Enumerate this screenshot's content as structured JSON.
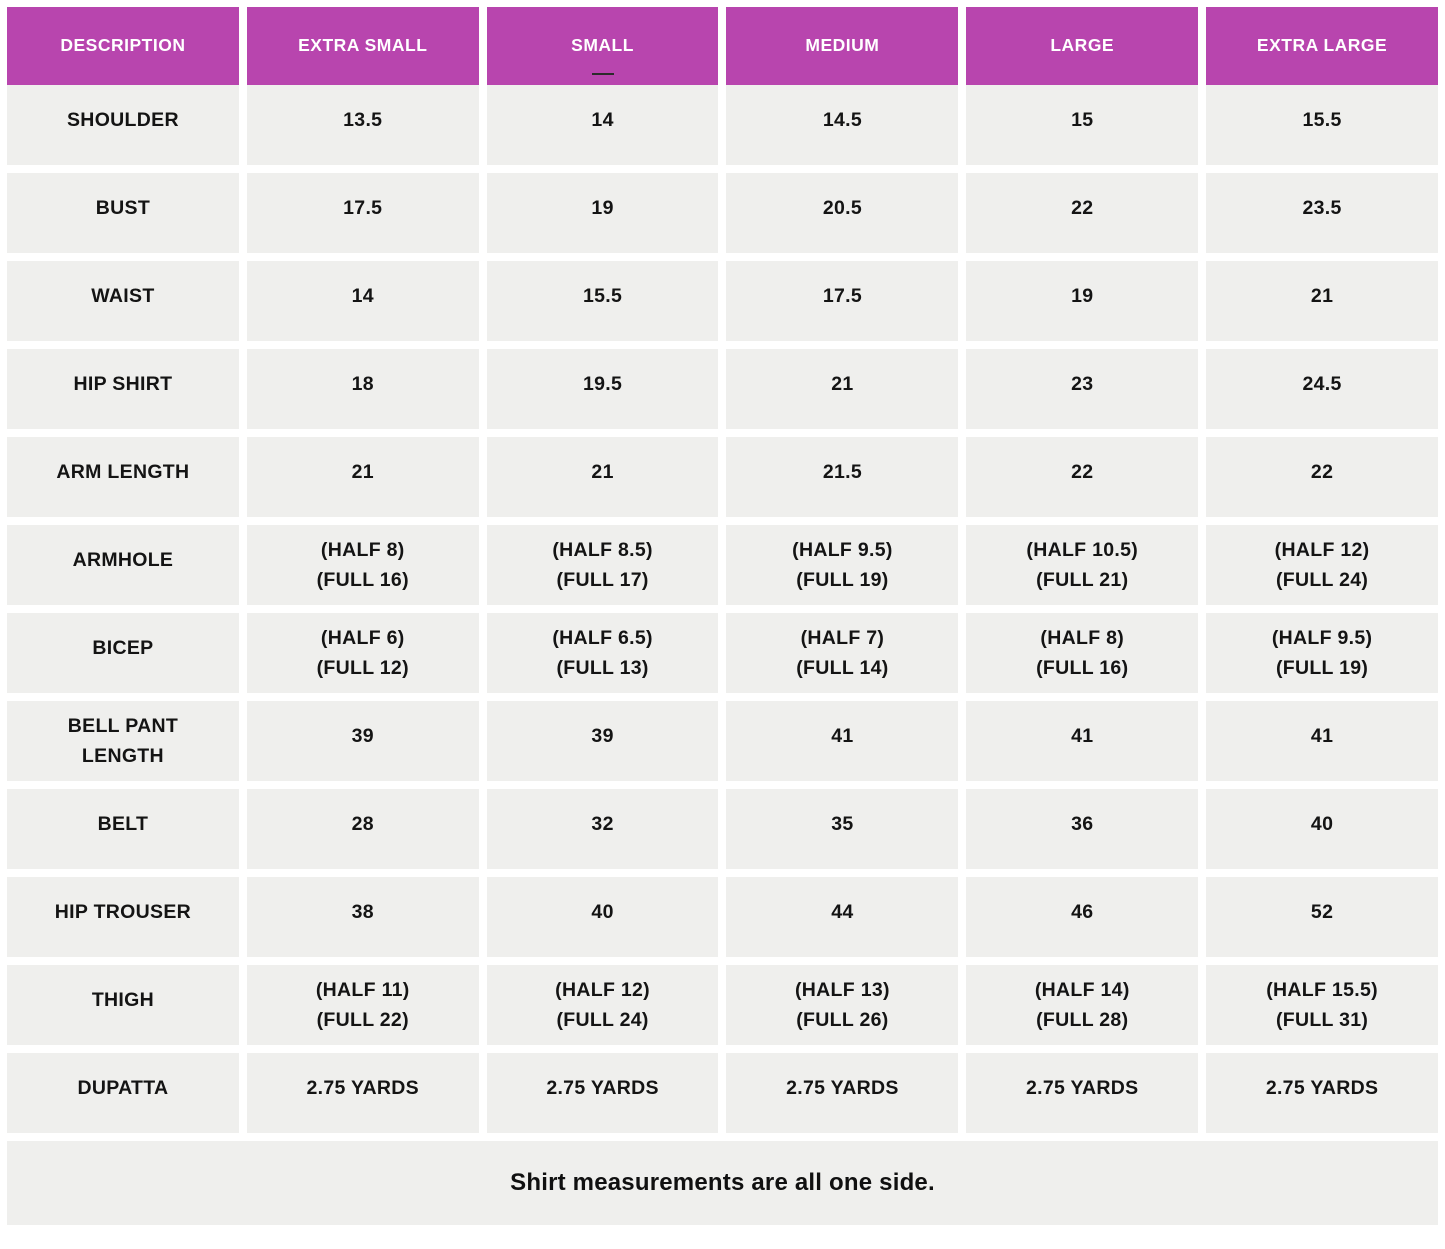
{
  "colors": {
    "header_bg": "#B845AE",
    "header_text": "#FFFFFF",
    "cell_bg": "#EFEFED",
    "cell_text": "#141414",
    "page_bg": "#FFFFFF"
  },
  "table": {
    "columns": [
      "DESCRIPTION",
      "EXTRA SMALL",
      "SMALL",
      "MEDIUM",
      "LARGE",
      "EXTRA LARGE"
    ],
    "dash_marker_under_column": "SMALL",
    "rows": [
      {
        "label": "SHOULDER",
        "values": [
          "13.5",
          "14",
          "14.5",
          "15",
          "15.5"
        ]
      },
      {
        "label": "BUST",
        "values": [
          "17.5",
          "19",
          "20.5",
          "22",
          "23.5"
        ]
      },
      {
        "label": "WAIST",
        "values": [
          "14",
          "15.5",
          "17.5",
          "19",
          "21"
        ]
      },
      {
        "label": "HIP SHIRT",
        "values": [
          "18",
          "19.5",
          "21",
          "23",
          "24.5"
        ]
      },
      {
        "label": "ARM LENGTH",
        "values": [
          "21",
          "21",
          "21.5",
          "22",
          "22"
        ]
      },
      {
        "label": "ARMHOLE",
        "values": [
          [
            "(HALF 8)",
            "(FULL 16)"
          ],
          [
            "(HALF 8.5)",
            "(FULL 17)"
          ],
          [
            "(HALF 9.5)",
            "(FULL 19)"
          ],
          [
            "(HALF 10.5)",
            "(FULL 21)"
          ],
          [
            "(HALF 12)",
            "(FULL 24)"
          ]
        ]
      },
      {
        "label": "BICEP",
        "values": [
          [
            "(HALF 6)",
            "(FULL 12)"
          ],
          [
            "(HALF 6.5)",
            "(FULL 13)"
          ],
          [
            "(HALF 7)",
            "(FULL 14)"
          ],
          [
            "(HALF 8)",
            "(FULL 16)"
          ],
          [
            "(HALF 9.5)",
            "(FULL 19)"
          ]
        ]
      },
      {
        "label": [
          "BELL PANT",
          "LENGTH"
        ],
        "values": [
          "39",
          "39",
          "41",
          "41",
          "41"
        ]
      },
      {
        "label": "BELT",
        "values": [
          "28",
          "32",
          "35",
          "36",
          "40"
        ]
      },
      {
        "label": "HIP TROUSER",
        "values": [
          "38",
          "40",
          "44",
          "46",
          "52"
        ]
      },
      {
        "label": "THIGH",
        "values": [
          [
            "(HALF 11)",
            "(FULL 22)"
          ],
          [
            "(HALF 12)",
            "(FULL 24)"
          ],
          [
            "(HALF 13)",
            "(FULL 26)"
          ],
          [
            "(HALF 14)",
            "(FULL 28)"
          ],
          [
            "(HALF 15.5)",
            "(FULL 31)"
          ]
        ]
      },
      {
        "label": "DUPATTA",
        "values": [
          "2.75 YARDS",
          "2.75 YARDS",
          "2.75 YARDS",
          "2.75 YARDS",
          "2.75 YARDS"
        ]
      }
    ],
    "footer_note": "Shirt measurements are all one side."
  }
}
